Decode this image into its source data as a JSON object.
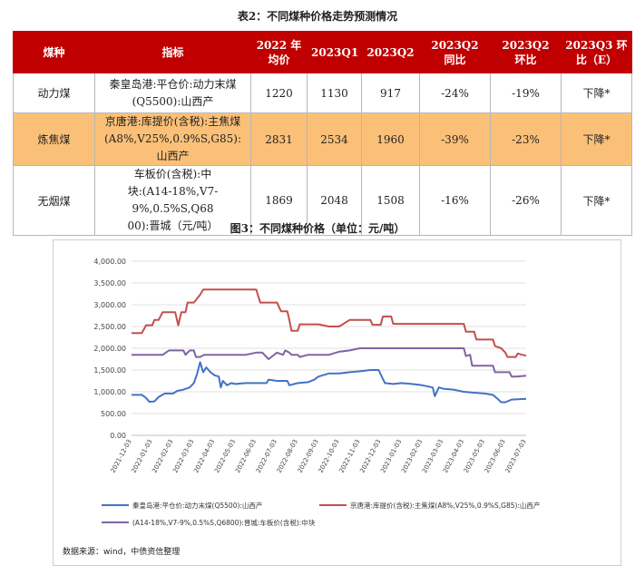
{
  "table": {
    "title": "表2：不同煤种价格走势预测情况",
    "headers": [
      "煤种",
      "指标",
      "2022年均价",
      "2023Q1",
      "2023Q2",
      "2023Q2同比",
      "2023Q2环比",
      "2023Q3环比（E）"
    ],
    "header_lines": [
      [
        "煤种"
      ],
      [
        "指标"
      ],
      [
        "2022 年",
        "均价"
      ],
      [
        "2023Q1"
      ],
      [
        "2023Q2"
      ],
      [
        "2023Q2",
        "同比"
      ],
      [
        "2023Q2",
        "环比"
      ],
      [
        "2023Q3 环",
        "比（E）"
      ]
    ],
    "rows": [
      {
        "name": "动力煤",
        "indicator_lines": [
          "秦皇岛港:平仓价:动力末煤",
          "(Q5500):山西产"
        ],
        "avg2022": "1220",
        "q1": "1130",
        "q2": "917",
        "yoy": "-24%",
        "qoq": "-19%",
        "forecast": "下降*",
        "highlight": false
      },
      {
        "name": "炼焦煤",
        "indicator_lines": [
          "京唐港:库提价(含税):主焦煤",
          "(A8%,V25%,0.9%S,G85):山西产"
        ],
        "avg2022": "2831",
        "q1": "2534",
        "q2": "1960",
        "yoy": "-39%",
        "qoq": "-23%",
        "forecast": "下降*",
        "highlight": true
      },
      {
        "name": "无烟煤",
        "indicator_lines": [
          "车板价(含税):中",
          "块:(A14-18%,V7-9%,0.5%S,Q68",
          "00):晋城（元/吨）"
        ],
        "avg2022": "1869",
        "q1": "2048",
        "q2": "1508",
        "yoy": "-16%",
        "qoq": "-26%",
        "forecast": "下降*",
        "highlight": false
      }
    ]
  },
  "figure": {
    "title": "图3：不同煤种价格（单位：元/吨）",
    "source": "数据来源：wind，中债资信整理"
  },
  "chart_data": {
    "type": "line",
    "title": "不同煤种价格（单位：元/吨）",
    "ylim": [
      0,
      4000
    ],
    "yticks": [
      "0.00",
      "500.00",
      "1,000.00",
      "1,500.00",
      "2,000.00",
      "2,500.00",
      "3,000.00",
      "3,500.00",
      "4,000.00"
    ],
    "ytick_values": [
      0,
      500,
      1000,
      1500,
      2000,
      2500,
      3000,
      3500,
      4000
    ],
    "xlim": [
      0,
      19
    ],
    "xticks": [
      "2021-12-03",
      "2022-01-03",
      "2022-02-03",
      "2022-03-03",
      "2022-04-03",
      "2022-05-03",
      "2022-06-03",
      "2022-07-03",
      "2022-08-03",
      "2022-09-03",
      "2022-10-03",
      "2022-11-03",
      "2022-12-03",
      "2023-01-03",
      "2023-02-03",
      "2023-03-03",
      "2023-04-03",
      "2023-05-03",
      "2023-06-03",
      "2023-07-03"
    ],
    "series": [
      {
        "name": "秦皇岛港:平仓价:动力末煤(Q5500):山西产",
        "color": "#4472c4",
        "points": [
          [
            0,
            930
          ],
          [
            0.5,
            930
          ],
          [
            0.7,
            860
          ],
          [
            0.85,
            770
          ],
          [
            1.1,
            780
          ],
          [
            1.3,
            880
          ],
          [
            1.6,
            960
          ],
          [
            2.0,
            960
          ],
          [
            2.2,
            1020
          ],
          [
            2.5,
            1050
          ],
          [
            2.8,
            1100
          ],
          [
            3.0,
            1200
          ],
          [
            3.15,
            1400
          ],
          [
            3.3,
            1680
          ],
          [
            3.45,
            1450
          ],
          [
            3.6,
            1560
          ],
          [
            3.8,
            1450
          ],
          [
            4.0,
            1380
          ],
          [
            4.2,
            1350
          ],
          [
            4.3,
            1100
          ],
          [
            4.4,
            1250
          ],
          [
            4.6,
            1150
          ],
          [
            4.8,
            1200
          ],
          [
            5.0,
            1180
          ],
          [
            5.5,
            1200
          ],
          [
            6.0,
            1200
          ],
          [
            6.5,
            1200
          ],
          [
            6.6,
            1280
          ],
          [
            7.0,
            1250
          ],
          [
            7.5,
            1250
          ],
          [
            7.6,
            1150
          ],
          [
            8.0,
            1200
          ],
          [
            8.5,
            1220
          ],
          [
            8.8,
            1280
          ],
          [
            9.0,
            1350
          ],
          [
            9.5,
            1420
          ],
          [
            10,
            1420
          ],
          [
            10.5,
            1450
          ],
          [
            11,
            1470
          ],
          [
            11.5,
            1500
          ],
          [
            11.9,
            1500
          ],
          [
            12.2,
            1200
          ],
          [
            12.6,
            1180
          ],
          [
            13.0,
            1200
          ],
          [
            13.5,
            1180
          ],
          [
            14.0,
            1150
          ],
          [
            14.5,
            1100
          ],
          [
            14.6,
            900
          ],
          [
            14.8,
            1100
          ],
          [
            15,
            1070
          ],
          [
            15.5,
            1050
          ],
          [
            16,
            1000
          ],
          [
            16.5,
            980
          ],
          [
            17,
            960
          ],
          [
            17.4,
            930
          ],
          [
            17.6,
            850
          ],
          [
            17.8,
            760
          ],
          [
            18,
            760
          ],
          [
            18.3,
            820
          ],
          [
            18.6,
            830
          ],
          [
            19,
            840
          ]
        ]
      },
      {
        "name": "京唐港:库提价(含税):主焦煤(A8%,V25%,0.9%S,G85):山西产",
        "color": "#c0504d",
        "points": [
          [
            0,
            2350
          ],
          [
            0.5,
            2350
          ],
          [
            0.7,
            2530
          ],
          [
            1.0,
            2530
          ],
          [
            1.1,
            2650
          ],
          [
            1.3,
            2650
          ],
          [
            1.5,
            2830
          ],
          [
            2.0,
            2830
          ],
          [
            2.1,
            2830
          ],
          [
            2.25,
            2530
          ],
          [
            2.4,
            2830
          ],
          [
            2.6,
            2830
          ],
          [
            2.7,
            3050
          ],
          [
            3.0,
            3050
          ],
          [
            3.3,
            3230
          ],
          [
            3.45,
            3350
          ],
          [
            4.0,
            3350
          ],
          [
            4.5,
            3350
          ],
          [
            5.0,
            3350
          ],
          [
            5.5,
            3350
          ],
          [
            6.0,
            3350
          ],
          [
            6.2,
            3050
          ],
          [
            6.6,
            3050
          ],
          [
            7.0,
            3050
          ],
          [
            7.2,
            2850
          ],
          [
            7.5,
            2850
          ],
          [
            7.6,
            2650
          ],
          [
            7.7,
            2400
          ],
          [
            8.0,
            2400
          ],
          [
            8.1,
            2550
          ],
          [
            8.5,
            2550
          ],
          [
            9.0,
            2550
          ],
          [
            9.5,
            2500
          ],
          [
            10,
            2500
          ],
          [
            10.5,
            2650
          ],
          [
            11,
            2650
          ],
          [
            11.5,
            2650
          ],
          [
            11.6,
            2540
          ],
          [
            12.0,
            2540
          ],
          [
            12.1,
            2730
          ],
          [
            12.5,
            2730
          ],
          [
            12.6,
            2560
          ],
          [
            13,
            2560
          ],
          [
            14,
            2560
          ],
          [
            14.5,
            2560
          ],
          [
            15,
            2560
          ],
          [
            15.6,
            2560
          ],
          [
            16,
            2560
          ],
          [
            16.1,
            2380
          ],
          [
            16.5,
            2380
          ],
          [
            16.6,
            2200
          ],
          [
            17,
            2200
          ],
          [
            17.4,
            2200
          ],
          [
            17.5,
            2050
          ],
          [
            17.8,
            2000
          ],
          [
            18,
            1900
          ],
          [
            18.1,
            1800
          ],
          [
            18.5,
            1800
          ],
          [
            18.6,
            1880
          ],
          [
            18.8,
            1850
          ],
          [
            19,
            1830
          ]
        ]
      },
      {
        "name": "(A14-18%,V7-9%,0.5%S,Q6800):晋城:车板价(含税):中块",
        "color": "#8064a2",
        "points": [
          [
            0,
            1850
          ],
          [
            1,
            1850
          ],
          [
            1.5,
            1850
          ],
          [
            1.8,
            1950
          ],
          [
            2.5,
            1950
          ],
          [
            2.6,
            1850
          ],
          [
            2.8,
            1950
          ],
          [
            3,
            1950
          ],
          [
            3.1,
            1800
          ],
          [
            3.3,
            1800
          ],
          [
            3.5,
            1850
          ],
          [
            4,
            1850
          ],
          [
            4.5,
            1850
          ],
          [
            5,
            1850
          ],
          [
            5.5,
            1850
          ],
          [
            6,
            1900
          ],
          [
            6.3,
            1900
          ],
          [
            6.6,
            1750
          ],
          [
            7,
            1900
          ],
          [
            7.3,
            1850
          ],
          [
            7.4,
            1950
          ],
          [
            7.6,
            1900
          ],
          [
            7.7,
            1850
          ],
          [
            8,
            1850
          ],
          [
            8.1,
            1800
          ],
          [
            8.5,
            1850
          ],
          [
            9,
            1850
          ],
          [
            9.5,
            1850
          ],
          [
            10,
            1920
          ],
          [
            10.5,
            1950
          ],
          [
            11,
            2000
          ],
          [
            11.5,
            2000
          ],
          [
            12,
            2000
          ],
          [
            12.5,
            2000
          ],
          [
            13,
            2000
          ],
          [
            13.5,
            2000
          ],
          [
            14,
            2000
          ],
          [
            14.5,
            2000
          ],
          [
            15,
            2000
          ],
          [
            15.6,
            2000
          ],
          [
            16,
            2000
          ],
          [
            16.1,
            1820
          ],
          [
            16.3,
            1850
          ],
          [
            16.4,
            1600
          ],
          [
            16.6,
            1600
          ],
          [
            17,
            1600
          ],
          [
            17.4,
            1600
          ],
          [
            17.5,
            1450
          ],
          [
            18,
            1450
          ],
          [
            18.2,
            1450
          ],
          [
            18.3,
            1350
          ],
          [
            18.5,
            1350
          ],
          [
            19,
            1370
          ]
        ]
      }
    ]
  }
}
